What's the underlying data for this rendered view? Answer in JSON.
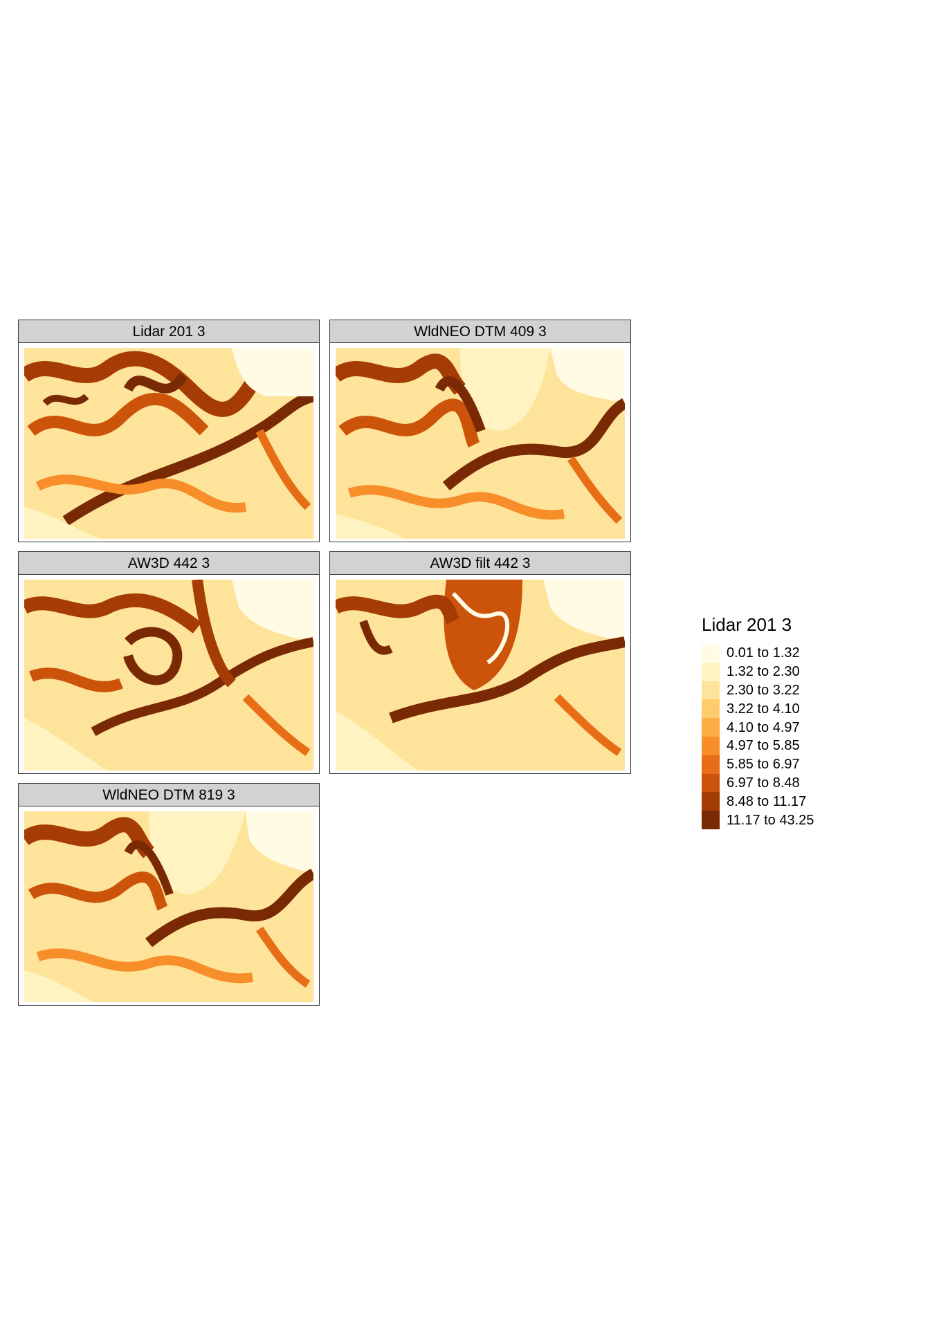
{
  "panels": [
    {
      "title": "Lidar 201 3"
    },
    {
      "title": "WldNEO DTM 409 3"
    },
    {
      "title": "AW3D 442 3"
    },
    {
      "title": "AW3D filt 442 3"
    },
    {
      "title": "WldNEO DTM 819 3"
    }
  ],
  "legend": {
    "title": "Lidar 201 3",
    "classes": [
      {
        "label": "0.01 to 1.32",
        "color": "#fffbe5"
      },
      {
        "label": "1.32 to 2.30",
        "color": "#fff3c2"
      },
      {
        "label": "2.30 to 3.22",
        "color": "#fee49a"
      },
      {
        "label": "3.22 to 4.10",
        "color": "#fecd6b"
      },
      {
        "label": "4.10 to 4.97",
        "color": "#fead44"
      },
      {
        "label": "4.97 to 5.85",
        "color": "#f88e2a"
      },
      {
        "label": "5.85 to 6.97",
        "color": "#e76e16"
      },
      {
        "label": "6.97 to 8.48",
        "color": "#cc530a"
      },
      {
        "label": "8.48 to 11.17",
        "color": "#a63c05"
      },
      {
        "label": "11.17 to 43.25",
        "color": "#7a2905"
      }
    ]
  }
}
